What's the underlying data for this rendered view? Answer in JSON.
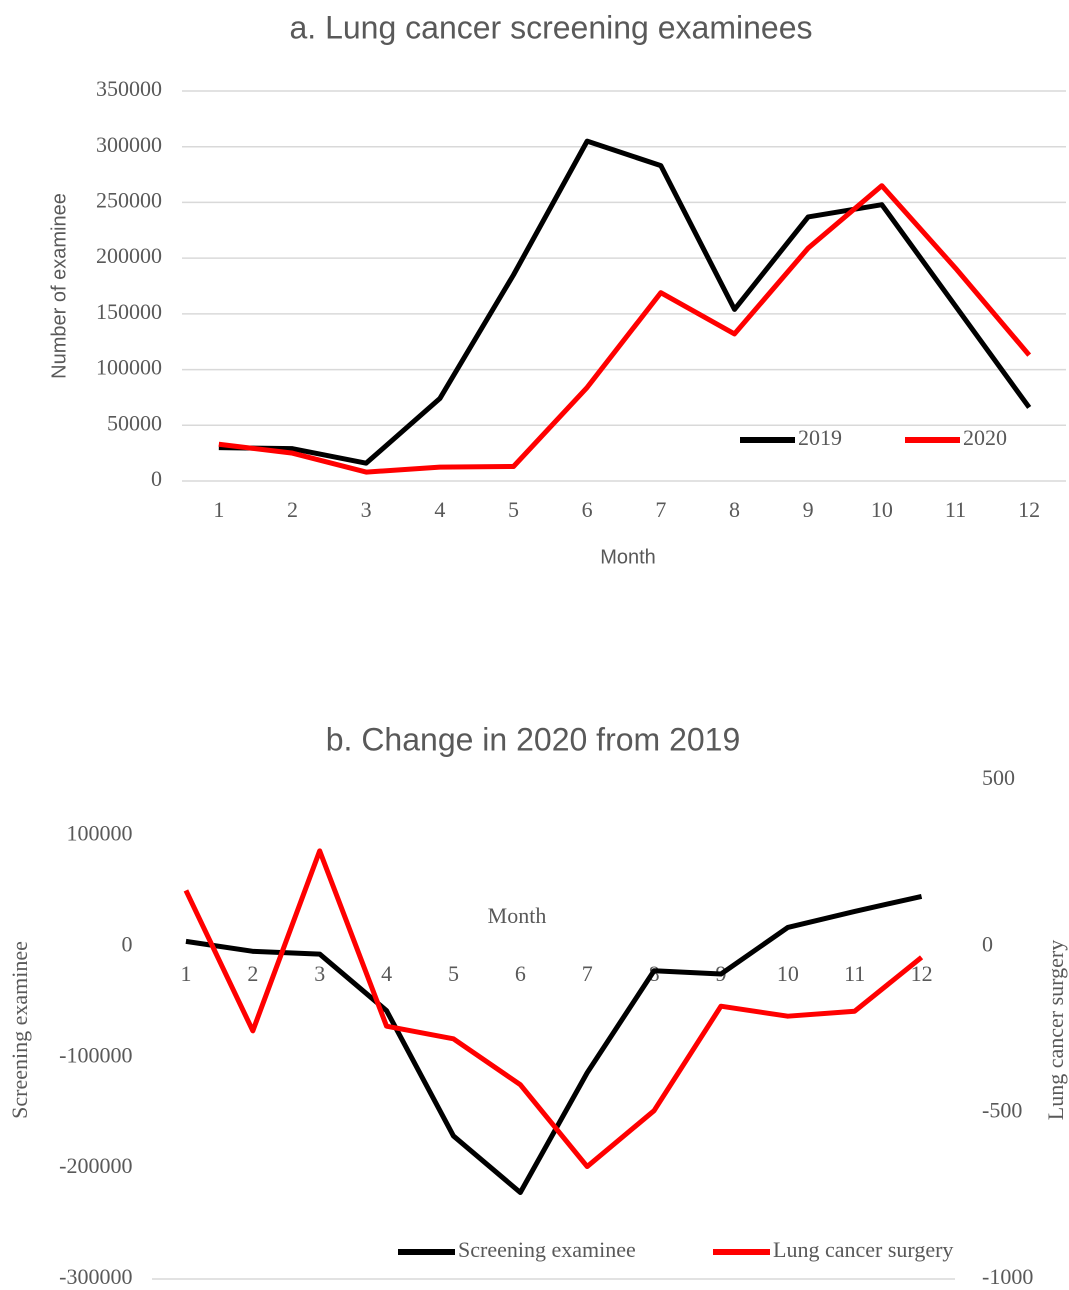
{
  "chart_data": [
    {
      "type": "line",
      "title": "a. Lung cancer screening examinees",
      "x_label": "Month",
      "y_label": "Number of examinee",
      "categories": [
        1,
        2,
        3,
        4,
        5,
        6,
        7,
        8,
        9,
        10,
        11,
        12
      ],
      "series": [
        {
          "name": "2019",
          "color": "#000000",
          "values": [
            30000,
            29000,
            16000,
            74000,
            185000,
            305000,
            283000,
            154000,
            237000,
            248000,
            157000,
            66000
          ]
        },
        {
          "name": "2020",
          "color": "#ff0000",
          "values": [
            33000,
            25000,
            8000,
            12500,
            13000,
            84000,
            169000,
            132000,
            209000,
            265000,
            191000,
            113000
          ]
        }
      ],
      "ylim": [
        0,
        350000
      ],
      "yticks": [
        0,
        50000,
        100000,
        150000,
        200000,
        250000,
        300000,
        350000
      ],
      "grid": true,
      "legend": "lower right"
    },
    {
      "type": "line",
      "title": "b. Change in 2020 from 2019",
      "x_label": "Month",
      "y_label": "Screening examinee",
      "y2_label": "Lung cancer surgery",
      "categories": [
        1,
        2,
        3,
        4,
        5,
        6,
        7,
        8,
        9,
        10,
        11,
        12
      ],
      "series": [
        {
          "name": "Screening examinee",
          "color": "#000000",
          "values": [
            4500,
            -4500,
            -7000,
            -58000,
            -171000,
            -222000,
            -114000,
            -22000,
            -25000,
            17000,
            31500,
            45000
          ]
        },
        {
          "name": "Lung cancer surgery",
          "color": "#ff0000",
          "axis": "y2",
          "values": [
            168,
            -254,
            287,
            -240,
            -278,
            -416,
            -662,
            -494,
            -180,
            -210,
            -195,
            -33
          ]
        }
      ],
      "ylim": [
        -300000,
        150000
      ],
      "yticks": [
        -300000,
        -200000,
        -100000,
        0,
        100000
      ],
      "y2lim": [
        -1000,
        500
      ],
      "y2ticks": [
        -1000,
        -500,
        0,
        500
      ],
      "grid": false,
      "legend": "bottom"
    }
  ]
}
